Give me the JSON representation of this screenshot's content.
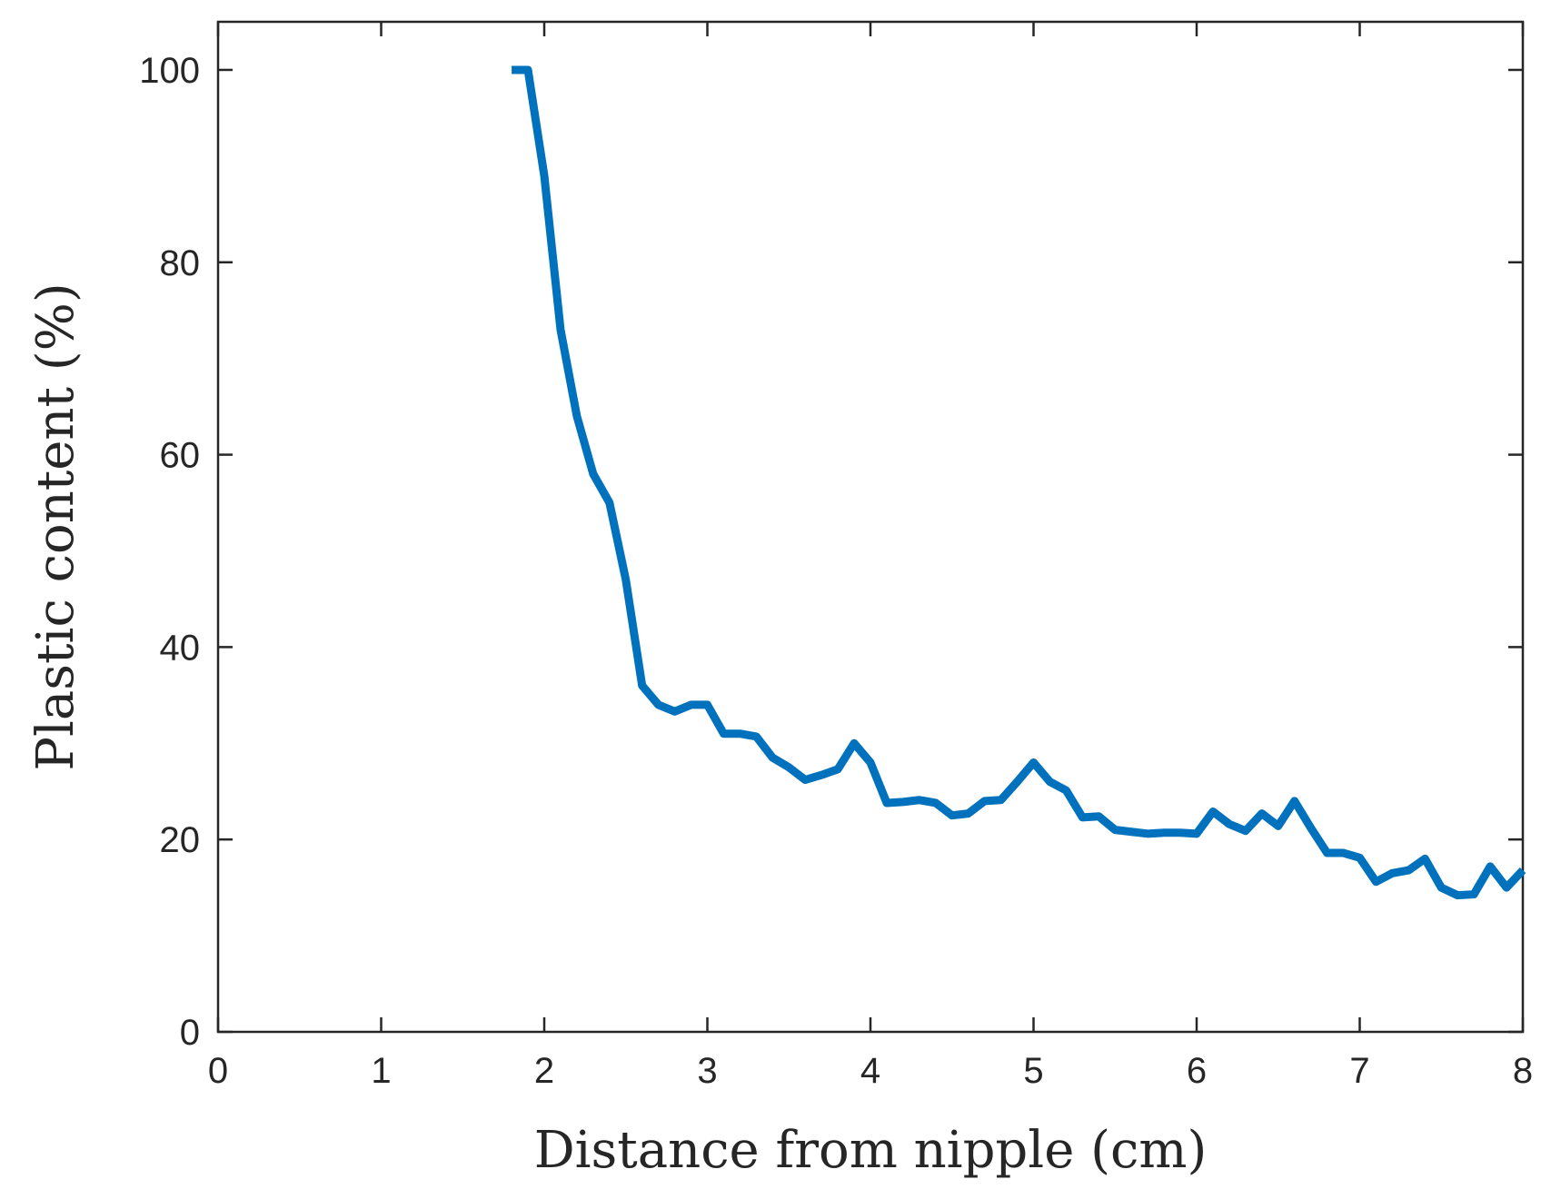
{
  "chart_data": {
    "type": "line",
    "xlabel": "Distance from nipple (cm)",
    "ylabel": "Plastic content (%)",
    "xlim": [
      0,
      8
    ],
    "ylim": [
      0,
      105
    ],
    "xticks": [
      "0",
      "1",
      "2",
      "3",
      "4",
      "5",
      "6",
      "7",
      "8"
    ],
    "yticks": [
      "0",
      "20",
      "40",
      "60",
      "80",
      "100"
    ],
    "grid": false,
    "line_color": "#0072BD",
    "series": [
      {
        "x": [
          1.8,
          1.9,
          2.0,
          2.1,
          2.2,
          2.3,
          2.4,
          2.5,
          2.6,
          2.7,
          2.8,
          2.9,
          3.0,
          3.1,
          3.2,
          3.3,
          3.4,
          3.5,
          3.6,
          3.7,
          3.8,
          3.9,
          4.0,
          4.1,
          4.2,
          4.3,
          4.4,
          4.5,
          4.6,
          4.7,
          4.8,
          4.9,
          5.0,
          5.1,
          5.2,
          5.3,
          5.4,
          5.5,
          5.6,
          5.7,
          5.8,
          5.9,
          6.0,
          6.1,
          6.2,
          6.3,
          6.4,
          6.5,
          6.6,
          6.7,
          6.8,
          6.9,
          7.0,
          7.1,
          7.2,
          7.3,
          7.4,
          7.5,
          7.6,
          7.7,
          7.8,
          7.9,
          8.0
        ],
        "y": [
          100,
          100,
          89,
          73,
          64,
          58,
          55,
          47,
          36,
          34,
          33.3,
          34,
          34,
          31,
          31,
          30.7,
          28.5,
          27.5,
          26.2,
          26.7,
          27.3,
          30,
          28,
          23.8,
          23.9,
          24.1,
          23.8,
          22.5,
          22.7,
          24,
          24.1,
          26,
          28,
          26,
          25.1,
          22.3,
          22.4,
          21,
          20.8,
          20.6,
          20.7,
          20.7,
          20.6,
          22.9,
          21.6,
          20.9,
          22.7,
          21.4,
          24,
          21.2,
          18.6,
          18.6,
          18.1,
          15.6,
          16.5,
          16.8,
          18,
          15,
          14.2,
          14.3,
          17.2,
          15,
          16.8
        ]
      }
    ]
  }
}
